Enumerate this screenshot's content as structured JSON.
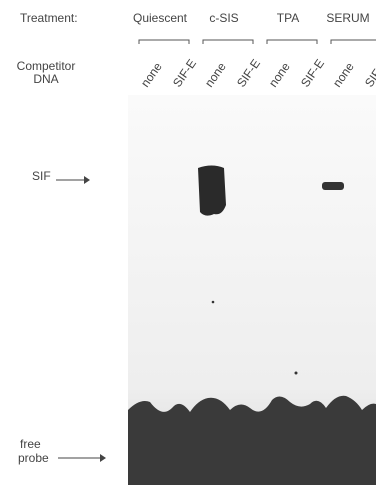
{
  "header": {
    "treatment_label": "Treatment:",
    "competitor_label": [
      "Competitor",
      "DNA"
    ]
  },
  "groups": [
    {
      "name": "Quiescent",
      "lanes": [
        "none",
        "SIF-E"
      ]
    },
    {
      "name": "c-SIS",
      "lanes": [
        "none",
        "SIF-E"
      ]
    },
    {
      "name": "TPA",
      "lanes": [
        "none",
        "SIF-E"
      ]
    },
    {
      "name": "SERUM",
      "lanes": [
        "none",
        "SIF-E"
      ]
    }
  ],
  "markers": {
    "sif": "SIF",
    "free_probe": [
      "free",
      "probe"
    ]
  }
}
